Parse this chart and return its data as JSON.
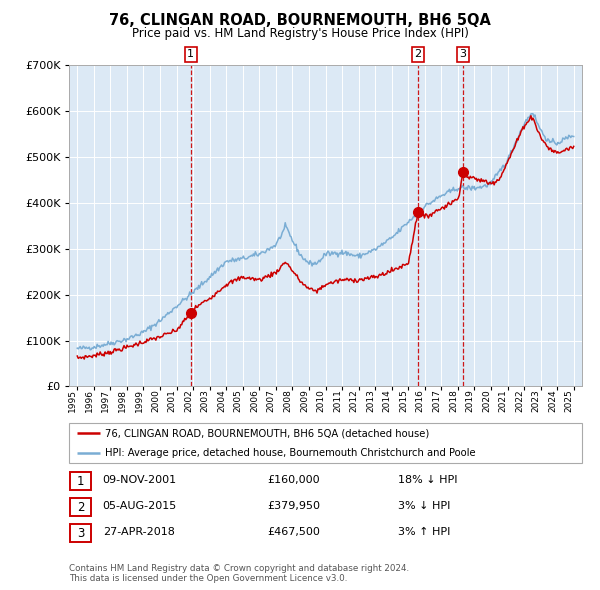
{
  "title": "76, CLINGAN ROAD, BOURNEMOUTH, BH6 5QA",
  "subtitle": "Price paid vs. HM Land Registry's House Price Index (HPI)",
  "legend_line1": "76, CLINGAN ROAD, BOURNEMOUTH, BH6 5QA (detached house)",
  "legend_line2": "HPI: Average price, detached house, Bournemouth Christchurch and Poole",
  "footnote1": "Contains HM Land Registry data © Crown copyright and database right 2024.",
  "footnote2": "This data is licensed under the Open Government Licence v3.0.",
  "sale_events": [
    {
      "num": "1",
      "date": "09-NOV-2001",
      "price": "£160,000",
      "note": "18% ↓ HPI",
      "x_year": 2001.86,
      "y_val": 160000
    },
    {
      "num": "2",
      "date": "05-AUG-2015",
      "price": "£379,950",
      "note": "3% ↓ HPI",
      "x_year": 2015.59,
      "y_val": 379950
    },
    {
      "num": "3",
      "date": "27-APR-2018",
      "price": "£467,500",
      "note": "3% ↑ HPI",
      "x_year": 2018.32,
      "y_val": 467500
    }
  ],
  "plot_bg_color": "#dce9f5",
  "red_line_color": "#cc0000",
  "blue_line_color": "#7aadd4",
  "dashed_vline_color": "#cc0000",
  "box_edge_color": "#cc0000",
  "grid_color": "#ffffff",
  "ylim": [
    0,
    700000
  ],
  "xlim_start": 1994.5,
  "xlim_end": 2025.5,
  "hpi_anchors": [
    [
      1995.0,
      82000
    ],
    [
      1996.0,
      86000
    ],
    [
      1997.0,
      94000
    ],
    [
      1998.0,
      103000
    ],
    [
      1999.0,
      118000
    ],
    [
      2000.0,
      143000
    ],
    [
      2001.0,
      175000
    ],
    [
      2002.0,
      205000
    ],
    [
      2003.0,
      238000
    ],
    [
      2004.0,
      272000
    ],
    [
      2005.0,
      278000
    ],
    [
      2006.0,
      288000
    ],
    [
      2007.0,
      308000
    ],
    [
      2007.6,
      348000
    ],
    [
      2008.0,
      318000
    ],
    [
      2008.5,
      285000
    ],
    [
      2009.0,
      268000
    ],
    [
      2009.5,
      268000
    ],
    [
      2010.0,
      288000
    ],
    [
      2011.0,
      292000
    ],
    [
      2012.0,
      283000
    ],
    [
      2013.0,
      298000
    ],
    [
      2014.0,
      323000
    ],
    [
      2015.0,
      358000
    ],
    [
      2016.0,
      392000
    ],
    [
      2017.0,
      415000
    ],
    [
      2018.0,
      432000
    ],
    [
      2019.0,
      432000
    ],
    [
      2019.5,
      435000
    ],
    [
      2020.0,
      442000
    ],
    [
      2021.0,
      492000
    ],
    [
      2022.0,
      572000
    ],
    [
      2022.5,
      598000
    ],
    [
      2023.0,
      558000
    ],
    [
      2023.5,
      532000
    ],
    [
      2024.0,
      530000
    ],
    [
      2025.0,
      548000
    ]
  ],
  "red_anchors": [
    [
      1995.0,
      62000
    ],
    [
      1996.0,
      67000
    ],
    [
      1997.0,
      75000
    ],
    [
      1998.0,
      85000
    ],
    [
      1999.0,
      97000
    ],
    [
      2000.0,
      108000
    ],
    [
      2001.0,
      122000
    ],
    [
      2001.86,
      160000
    ],
    [
      2002.0,
      168000
    ],
    [
      2003.0,
      192000
    ],
    [
      2004.0,
      222000
    ],
    [
      2005.0,
      238000
    ],
    [
      2006.0,
      232000
    ],
    [
      2007.0,
      248000
    ],
    [
      2007.6,
      272000
    ],
    [
      2008.0,
      252000
    ],
    [
      2008.5,
      228000
    ],
    [
      2009.0,
      212000
    ],
    [
      2009.5,
      208000
    ],
    [
      2010.0,
      222000
    ],
    [
      2011.0,
      232000
    ],
    [
      2012.0,
      232000
    ],
    [
      2013.0,
      238000
    ],
    [
      2014.0,
      252000
    ],
    [
      2015.0,
      268000
    ],
    [
      2015.59,
      379950
    ],
    [
      2016.0,
      368000
    ],
    [
      2017.0,
      388000
    ],
    [
      2018.0,
      408000
    ],
    [
      2018.32,
      467500
    ],
    [
      2018.5,
      458000
    ],
    [
      2019.0,
      452000
    ],
    [
      2019.5,
      448000
    ],
    [
      2020.0,
      442000
    ],
    [
      2020.5,
      452000
    ],
    [
      2021.0,
      488000
    ],
    [
      2022.0,
      568000
    ],
    [
      2022.5,
      588000
    ],
    [
      2023.0,
      542000
    ],
    [
      2023.5,
      518000
    ],
    [
      2024.0,
      508000
    ],
    [
      2025.0,
      522000
    ]
  ]
}
